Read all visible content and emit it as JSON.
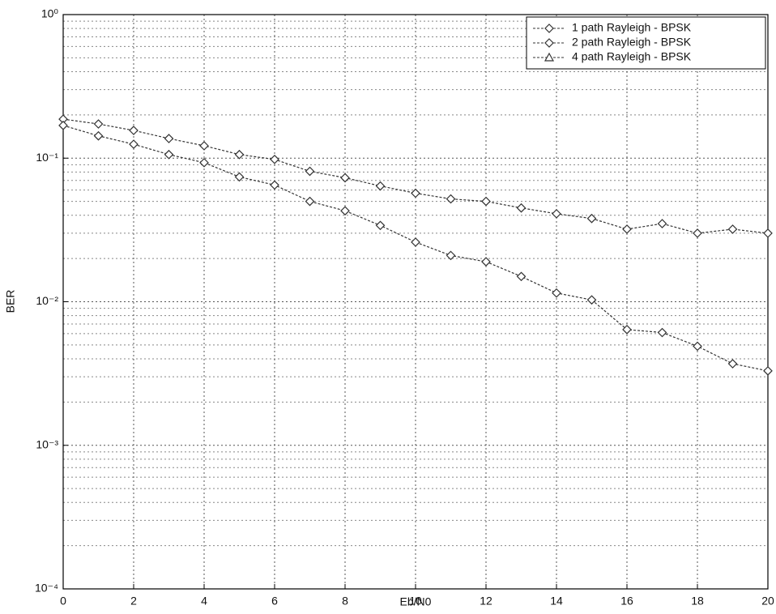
{
  "chart_data": {
    "type": "line",
    "xlabel": "Eb/N0",
    "ylabel": "BER",
    "x": [
      0,
      1,
      2,
      3,
      4,
      5,
      6,
      7,
      8,
      9,
      10,
      11,
      12,
      13,
      14,
      15,
      16,
      17,
      18,
      19,
      20
    ],
    "series": [
      {
        "name": "1 path Rayleigh - BPSK",
        "color": "#333333",
        "marker": "diamond",
        "values": [
          0.187,
          0.173,
          0.156,
          0.137,
          0.122,
          0.106,
          0.098,
          0.081,
          0.073,
          0.064,
          0.057,
          0.052,
          0.05,
          0.045,
          0.041,
          0.038,
          0.032,
          0.035,
          0.03,
          0.032,
          0.03
        ]
      },
      {
        "name": "2 path Rayleigh - BPSK",
        "color": "#333333",
        "marker": "diamond",
        "values": [
          0.169,
          0.143,
          0.125,
          0.106,
          0.093,
          0.074,
          0.065,
          0.05,
          0.043,
          0.034,
          0.026,
          0.021,
          0.019,
          0.015,
          0.0115,
          0.0103,
          0.0064,
          0.0061,
          0.0049,
          0.0037,
          0.0033
        ]
      },
      {
        "name": "4 path Rayleigh - BPSK",
        "color": "#333333",
        "marker": "triangle",
        "values": [
          null,
          null,
          null,
          null,
          null,
          null,
          null,
          null,
          null,
          null,
          null,
          null,
          null,
          null,
          null,
          null,
          null,
          null,
          null,
          null,
          null
        ]
      }
    ],
    "xlim": [
      0,
      20
    ],
    "xticks": [
      0,
      2,
      4,
      6,
      8,
      10,
      12,
      14,
      16,
      18,
      20
    ],
    "ylim": [
      0.0001,
      1
    ],
    "log_y": true,
    "yticks": [
      {
        "value": 0.0001,
        "label": "10⁻⁴"
      },
      {
        "value": 0.001,
        "label": "10⁻³"
      },
      {
        "value": 0.01,
        "label": "10⁻²"
      },
      {
        "value": 0.1,
        "label": "10⁻¹"
      },
      {
        "value": 1,
        "label": "10⁰"
      }
    ],
    "grid": true,
    "legend": "upper right"
  }
}
